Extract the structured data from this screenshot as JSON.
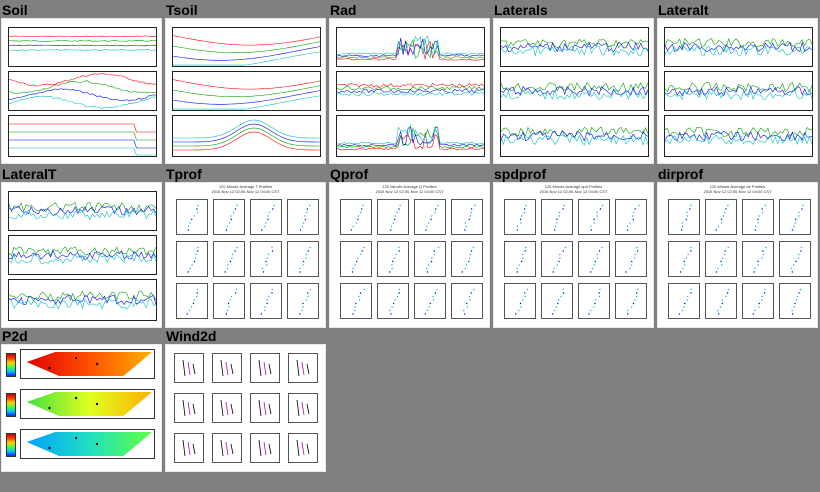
{
  "tiles": [
    {
      "title": "Soil"
    },
    {
      "title": "Tsoil"
    },
    {
      "title": "Rad"
    },
    {
      "title": "Laterals"
    },
    {
      "title": "Lateralt"
    },
    {
      "title": "LateralT"
    },
    {
      "title": "Tprof",
      "header": "120 Minute Average T Profiles",
      "subheader": "2016 Nov 12 02:00-Nov 12 04:00 CST"
    },
    {
      "title": "Qprof",
      "header": "120 Minute Average Q Profiles",
      "subheader": "2016 Nov 12 02:00-Nov 12 04:00 CST"
    },
    {
      "title": "spdprof",
      "header": "120 Minute Average spd Profiles",
      "subheader": "2016 Nov 12 02:00-Nov 12 04:00 CST"
    },
    {
      "title": "dirprof",
      "header": "120 Minute Average dir Profiles",
      "subheader": "2016 Nov 12 02:00-Nov 12 04:00 CST"
    },
    {
      "title": "P2d"
    },
    {
      "title": "Wind2d"
    }
  ],
  "colors": {
    "background": "#808080",
    "series": [
      "#ff0000",
      "#00a000",
      "#0000ff",
      "#00c0c0",
      "#c000c0",
      "#c0a000",
      "#000000"
    ]
  }
}
